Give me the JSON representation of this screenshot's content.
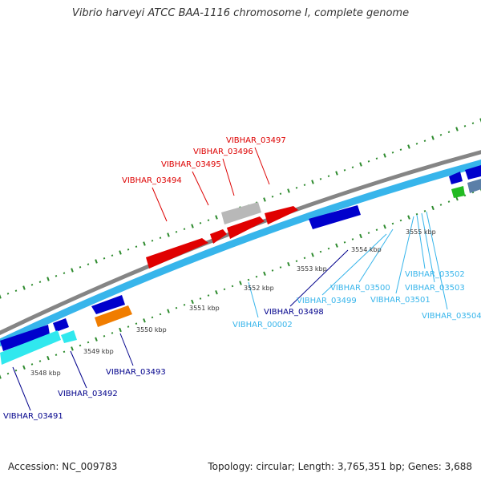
{
  "header": {
    "title": "Vibrio harveyi ATCC BAA-1116 chromosome I, complete genome"
  },
  "footer": {
    "accession": "Accession: NC_009783",
    "summary": "Topology: circular; Length: 3,765,351 bp; Genes: 3,688"
  },
  "colors": {
    "backbone": "#858585",
    "forward_strand": "#e00000",
    "forward_labels": "#dd0000",
    "reverse_strand_dark": "#0000cc",
    "reverse_strand_light": "#37b5eb",
    "cyan_gene": "#30e8ee",
    "orange_gene": "#f07d00",
    "green_gene": "#22bb22",
    "grey_gene": "#b8b8b8",
    "ticks": "#2e8b2e"
  },
  "scale": {
    "unit": "kbp",
    "labels": [
      "3548 kbp",
      "3549 kbp",
      "3550 kbp",
      "3551 kbp",
      "3552 kbp",
      "3553 kbp",
      "3554 kbp",
      "3555 kbp"
    ]
  },
  "genes_forward": [
    "VIBHAR_03494",
    "VIBHAR_03495",
    "VIBHAR_03496",
    "VIBHAR_03497"
  ],
  "genes_reverse": [
    "VIBHAR_03491",
    "VIBHAR_03492",
    "VIBHAR_03493",
    "VIBHAR_03498",
    "VIBHAR_00002",
    "VIBHAR_03499",
    "VIBHAR_03500",
    "VIBHAR_03501",
    "VIBHAR_03502",
    "VIBHAR_03503",
    "VIBHAR_03504"
  ]
}
